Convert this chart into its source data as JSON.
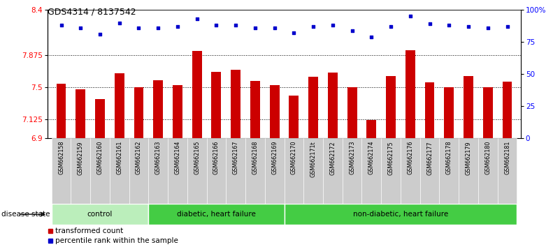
{
  "title": "GDS4314 / 8137542",
  "samples": [
    "GSM662158",
    "GSM662159",
    "GSM662160",
    "GSM662161",
    "GSM662162",
    "GSM662163",
    "GSM662164",
    "GSM662165",
    "GSM662166",
    "GSM662167",
    "GSM662168",
    "GSM662169",
    "GSM662170",
    "GSM662171t",
    "GSM662172",
    "GSM662173",
    "GSM662174",
    "GSM662175",
    "GSM662176",
    "GSM662177",
    "GSM662178",
    "GSM662179",
    "GSM662180",
    "GSM662181"
  ],
  "bar_values": [
    7.54,
    7.47,
    7.36,
    7.66,
    7.5,
    7.58,
    7.52,
    7.92,
    7.68,
    7.7,
    7.57,
    7.52,
    7.4,
    7.62,
    7.67,
    7.5,
    7.11,
    7.63,
    7.93,
    7.55,
    7.5,
    7.63,
    7.5,
    7.56
  ],
  "dot_values": [
    88,
    86,
    81,
    90,
    86,
    86,
    87,
    93,
    88,
    88,
    86,
    86,
    82,
    87,
    88,
    84,
    79,
    87,
    95,
    89,
    88,
    87,
    86,
    87
  ],
  "bar_color": "#cc0000",
  "dot_color": "#0000cc",
  "ylim_left": [
    6.9,
    8.4
  ],
  "ylim_right": [
    0,
    100
  ],
  "yticks_left": [
    6.9,
    7.125,
    7.5,
    7.875,
    8.4
  ],
  "ytick_labels_left": [
    "6.9",
    "7.125",
    "7.5",
    "7.875",
    "8.4"
  ],
  "yticks_right": [
    0,
    25,
    50,
    75,
    100
  ],
  "ytick_labels_right": [
    "0",
    "25",
    "50",
    "75",
    "100%"
  ],
  "hlines": [
    7.125,
    7.5,
    7.875
  ],
  "groups": [
    {
      "label": "control",
      "start": 0,
      "end": 4,
      "color": "#bbeebb"
    },
    {
      "label": "diabetic, heart failure",
      "start": 5,
      "end": 11,
      "color": "#44cc44"
    },
    {
      "label": "non-diabetic, heart failure",
      "start": 12,
      "end": 23,
      "color": "#44cc44"
    }
  ],
  "legend_items": [
    {
      "label": "transformed count",
      "color": "#cc0000"
    },
    {
      "label": "percentile rank within the sample",
      "color": "#0000cc"
    }
  ],
  "disease_state_label": "disease state",
  "tick_bg_color": "#cccccc",
  "background_color": "#ffffff"
}
